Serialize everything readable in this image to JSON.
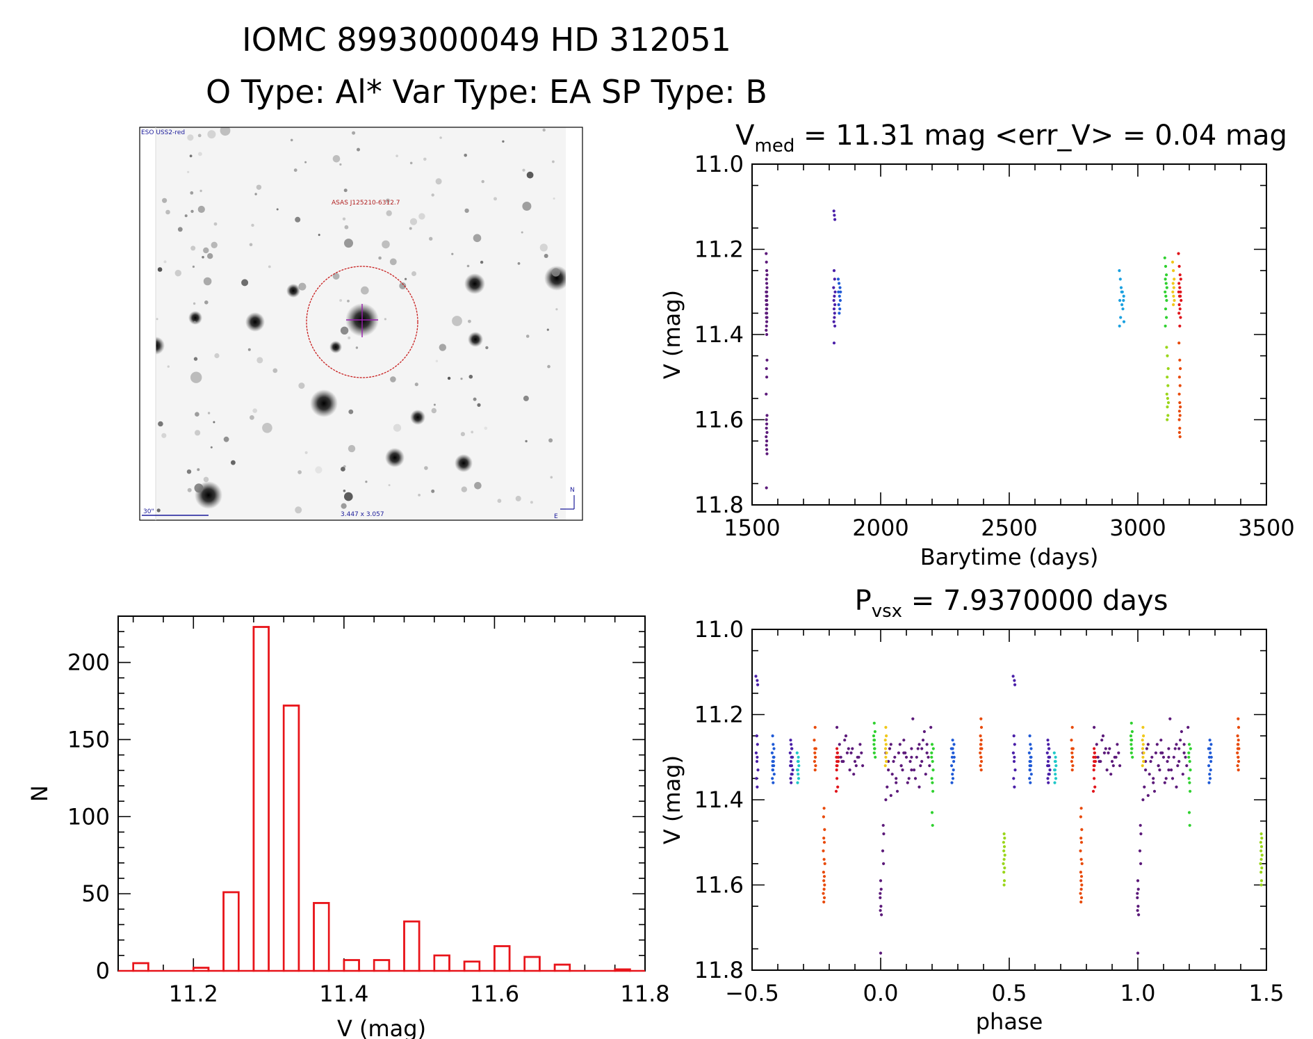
{
  "header": {
    "title_line1": "IOMC 8993000049    HD 312051",
    "title_line2": "O Type: Al*  Var Type: EA  SP Type: B"
  },
  "finder": {
    "survey_label": "ESO USS2-red",
    "object_label": "ASAS J125210-6312.7",
    "scale_label": "30\"",
    "fov_label": "3.447 x 3.057",
    "north_label": "N",
    "east_label": "E"
  },
  "colors": {
    "histogram": "#e8141a",
    "circle": "#c81e1e",
    "crosshair": "#9b1fb0",
    "axis": "#000000"
  },
  "chart_data": [
    {
      "id": "light_curve",
      "type": "scatter",
      "title_main": "V",
      "title_sub": "med",
      "title_rest": " = 11.31 mag <err_V> = 0.04 mag",
      "xlabel": "Barytime (days)",
      "ylabel": "V (mag)",
      "xlim": [
        1500,
        3500
      ],
      "ylim": [
        11.8,
        11.0
      ],
      "xticks": [
        "1500",
        "2000",
        "2500",
        "3000",
        "3500"
      ],
      "yticks": [
        "11.0",
        "11.2",
        "11.4",
        "11.6",
        "11.8"
      ],
      "series": [
        {
          "color": "#5c1a7a",
          "x": [
            1555,
            1556,
            1557,
            1558,
            1556,
            1557,
            1558,
            1555,
            1557,
            1556,
            1558,
            1555,
            1557,
            1556,
            1558,
            1557,
            1556,
            1555,
            1557,
            1556,
            1558,
            1557,
            1556,
            1555,
            1557,
            1558,
            1556,
            1557,
            1555,
            1558,
            1556,
            1557,
            1556,
            1558,
            1555,
            1557,
            1556,
            1557,
            1558,
            1556
          ],
          "y": [
            11.21,
            11.23,
            11.25,
            11.26,
            11.27,
            11.28,
            11.29,
            11.3,
            11.3,
            11.31,
            11.31,
            11.32,
            11.32,
            11.33,
            11.33,
            11.34,
            11.34,
            11.35,
            11.35,
            11.36,
            11.36,
            11.37,
            11.38,
            11.39,
            11.4,
            11.46,
            11.48,
            11.5,
            11.54,
            11.59,
            11.6,
            11.61,
            11.62,
            11.63,
            11.64,
            11.65,
            11.66,
            11.67,
            11.68,
            11.76
          ]
        },
        {
          "color": "#4a1fa8",
          "x": [
            1818,
            1820,
            1822,
            1819,
            1821,
            1817,
            1823,
            1820,
            1818,
            1822,
            1819,
            1821,
            1820,
            1818,
            1822,
            1819
          ],
          "y": [
            11.11,
            11.12,
            11.13,
            11.25,
            11.27,
            11.29,
            11.3,
            11.31,
            11.32,
            11.33,
            11.34,
            11.35,
            11.36,
            11.37,
            11.38,
            11.42
          ]
        },
        {
          "color": "#1f5ad6",
          "x": [
            1835,
            1838,
            1842,
            1836,
            1840,
            1843,
            1837,
            1841,
            1839,
            1844
          ],
          "y": [
            11.27,
            11.28,
            11.29,
            11.3,
            11.31,
            11.32,
            11.33,
            11.34,
            11.35,
            11.3
          ]
        },
        {
          "color": "#1aa0e0",
          "x": [
            2928,
            2932,
            2935,
            2940,
            2945,
            2930,
            2938,
            2942,
            2933,
            2946,
            2929,
            2937,
            2944
          ],
          "y": [
            11.25,
            11.27,
            11.29,
            11.3,
            11.31,
            11.32,
            11.33,
            11.34,
            11.36,
            11.37,
            11.38,
            11.3,
            11.32
          ]
        },
        {
          "color": "#2fd12f",
          "x": [
            3105,
            3108,
            3111,
            3107,
            3110,
            3113,
            3106,
            3109,
            3112,
            3108,
            3111,
            3107
          ],
          "y": [
            11.22,
            11.24,
            11.26,
            11.27,
            11.28,
            11.29,
            11.3,
            11.31,
            11.32,
            11.34,
            11.36,
            11.38
          ]
        },
        {
          "color": "#9ad61a",
          "x": [
            3112,
            3115,
            3118,
            3114,
            3117,
            3113,
            3116,
            3119,
            3115,
            3117,
            3114
          ],
          "y": [
            11.43,
            11.45,
            11.48,
            11.5,
            11.52,
            11.54,
            11.55,
            11.56,
            11.57,
            11.59,
            11.6
          ]
        },
        {
          "color": "#f0c81a",
          "x": [
            3135,
            3138,
            3141,
            3137,
            3140,
            3136,
            3139,
            3142,
            3138
          ],
          "y": [
            11.23,
            11.25,
            11.27,
            11.28,
            11.29,
            11.3,
            11.31,
            11.32,
            11.33
          ]
        },
        {
          "color": "#e84a0a",
          "x": [
            3160,
            3163,
            3165,
            3162,
            3164,
            3161,
            3163,
            3165,
            3162,
            3164,
            3161,
            3163,
            3162,
            3164
          ],
          "y": [
            11.42,
            11.46,
            11.48,
            11.5,
            11.52,
            11.54,
            11.56,
            11.57,
            11.58,
            11.59,
            11.6,
            11.62,
            11.63,
            11.64
          ]
        },
        {
          "color": "#e0141a",
          "x": [
            3158,
            3161,
            3164,
            3167,
            3160,
            3163,
            3166,
            3159,
            3162,
            3165,
            3168,
            3161,
            3164,
            3160,
            3166,
            3163
          ],
          "y": [
            11.21,
            11.24,
            11.26,
            11.27,
            11.28,
            11.29,
            11.3,
            11.3,
            11.31,
            11.31,
            11.32,
            11.33,
            11.34,
            11.35,
            11.36,
            11.38
          ]
        }
      ]
    },
    {
      "id": "histogram",
      "type": "bar",
      "xlabel": "V (mag)",
      "ylabel": "N",
      "xlim": [
        11.1,
        11.8
      ],
      "ylim": [
        0,
        230
      ],
      "xticks": [
        "11.2",
        "11.4",
        "11.6",
        "11.8"
      ],
      "yticks": [
        "0",
        "50",
        "100",
        "150",
        "200"
      ],
      "bin_edges": [
        11.1,
        11.12,
        11.14,
        11.16,
        11.18,
        11.2,
        11.22,
        11.24,
        11.26,
        11.28,
        11.3,
        11.32,
        11.34,
        11.36,
        11.38,
        11.4,
        11.42,
        11.44,
        11.46,
        11.48,
        11.5,
        11.52,
        11.54,
        11.56,
        11.58,
        11.6,
        11.62,
        11.64,
        11.66,
        11.68,
        11.7,
        11.72,
        11.74,
        11.76,
        11.78,
        11.8
      ],
      "values": [
        0,
        5,
        0,
        0,
        0,
        2,
        0,
        51,
        0,
        223,
        0,
        172,
        0,
        44,
        0,
        7,
        0,
        7,
        0,
        32,
        0,
        10,
        0,
        6,
        0,
        16,
        0,
        9,
        0,
        4,
        0,
        0,
        0,
        1,
        0
      ]
    },
    {
      "id": "phased",
      "type": "scatter",
      "title_main": "P",
      "title_sub": "vsx",
      "title_rest": " = 7.9370000 days",
      "xlabel": "phase",
      "ylabel": "V (mag)",
      "xlim": [
        -0.5,
        1.5
      ],
      "ylim": [
        11.8,
        11.0
      ],
      "xticks": [
        "−0.5",
        "0.0",
        "0.5",
        "1.0",
        "1.5"
      ],
      "yticks": [
        "11.0",
        "11.2",
        "11.4",
        "11.6",
        "11.8"
      ],
      "series": [
        {
          "color": "#4a1fa8",
          "x": [
            -0.485,
            -0.48,
            -0.478,
            -0.482,
            -0.479,
            -0.484,
            -0.481,
            -0.477,
            -0.483,
            -0.48,
            -0.48,
            -0.35,
            -0.348,
            -0.345,
            -0.352,
            -0.347,
            -0.349,
            -0.346,
            -0.342,
            -0.344,
            -0.35,
            -0.348,
            -0.343,
            -0.346,
            -0.351,
            -0.347
          ],
          "y": [
            11.11,
            11.12,
            11.13,
            11.25,
            11.27,
            11.29,
            11.31,
            11.33,
            11.35,
            11.37,
            11.3,
            11.26,
            11.27,
            11.28,
            11.29,
            11.3,
            11.31,
            11.32,
            11.33,
            11.34,
            11.35,
            11.36,
            11.3,
            11.28,
            11.32,
            11.34
          ]
        },
        {
          "color": "#1f5ad6",
          "x": [
            -0.42,
            -0.418,
            -0.415,
            -0.422,
            -0.417,
            -0.42,
            -0.416,
            -0.419,
            -0.414,
            -0.421,
            -0.418,
            -0.415,
            -0.42,
            -0.417,
            -0.42,
            0.28,
            0.285,
            0.275,
            0.282,
            0.278,
            0.284,
            0.276,
            0.283,
            0.279,
            0.281,
            0.277,
            0.286,
            0.28
          ],
          "y": [
            11.25,
            11.27,
            11.28,
            11.29,
            11.3,
            11.31,
            11.32,
            11.33,
            11.34,
            11.35,
            11.36,
            11.3,
            11.32,
            11.31,
            11.33,
            11.26,
            11.27,
            11.28,
            11.29,
            11.3,
            11.31,
            11.32,
            11.33,
            11.34,
            11.35,
            11.36,
            11.3,
            11.28
          ]
        },
        {
          "color": "#1fc8c8",
          "x": [
            -0.325,
            -0.32,
            -0.322,
            -0.318,
            -0.324,
            -0.321,
            -0.319,
            -0.323,
            -0.32,
            -0.322
          ],
          "y": [
            11.29,
            11.3,
            11.31,
            11.32,
            11.33,
            11.34,
            11.35,
            11.36,
            11.31,
            11.33
          ]
        },
        {
          "color": "#e84a0a",
          "x": [
            -0.255,
            -0.258,
            -0.252,
            -0.256,
            -0.254,
            -0.257,
            -0.253,
            -0.255,
            -0.256,
            -0.254,
            -0.22,
            -0.222,
            -0.218,
            -0.221,
            -0.219,
            -0.223,
            -0.22,
            -0.217,
            -0.222,
            -0.219,
            -0.221,
            -0.218,
            -0.22,
            -0.223,
            -0.219,
            -0.221,
            0.39,
            0.392,
            0.388,
            0.391,
            0.389,
            0.393,
            0.387,
            0.39,
            0.392,
            0.388,
            0.391,
            0.389,
            0.39,
            0.39
          ],
          "y": [
            11.23,
            11.26,
            11.28,
            11.29,
            11.3,
            11.31,
            11.32,
            11.33,
            11.28,
            11.3,
            11.42,
            11.44,
            11.47,
            11.49,
            11.5,
            11.52,
            11.54,
            11.55,
            11.57,
            11.58,
            11.59,
            11.6,
            11.61,
            11.62,
            11.63,
            11.64,
            11.21,
            11.23,
            11.25,
            11.26,
            11.27,
            11.28,
            11.29,
            11.3,
            11.31,
            11.32,
            11.33,
            11.28,
            11.3,
            11.27
          ]
        },
        {
          "color": "#e0141a",
          "x": [
            -0.17,
            -0.168,
            -0.172,
            -0.165,
            -0.169,
            -0.171,
            -0.166,
            -0.17,
            -0.167,
            -0.173,
            -0.168,
            -0.17,
            -0.164,
            -0.171
          ],
          "y": [
            11.28,
            11.29,
            11.3,
            11.31,
            11.32,
            11.33,
            11.3,
            11.35,
            11.37,
            11.38,
            11.29,
            11.31,
            11.3,
            11.32
          ]
        },
        {
          "color": "#5c1a7a",
          "x": [
            -0.17,
            -0.16,
            -0.15,
            -0.14,
            -0.13,
            -0.12,
            -0.11,
            -0.1,
            -0.09,
            -0.08,
            -0.07,
            -0.155,
            -0.135,
            -0.115,
            -0.095,
            -0.075,
            -0.145,
            -0.125,
            -0.105,
            -0.085,
            0.0,
            0.002,
            -0.002,
            0.001,
            -0.001,
            0.003,
            0.0,
            -0.002,
            0.02,
            0.03,
            0.04,
            0.05,
            0.06,
            0.07,
            0.08,
            0.09,
            0.1,
            0.11,
            0.12,
            0.13,
            0.14,
            0.15,
            0.16,
            0.17,
            0.18,
            0.19,
            0.025,
            0.035,
            0.045,
            0.055,
            0.065,
            0.075,
            0.085,
            0.095,
            0.105,
            0.115,
            0.125,
            0.135,
            0.145,
            0.155,
            0.165,
            0.175,
            0.185,
            0.195,
            0.03,
            0.06,
            0.09,
            0.12,
            0.15,
            0.18,
            0.04,
            0.08,
            0.12,
            0.16,
            0.02,
            0.01,
            0.012,
            0.008,
            0.011
          ],
          "y": [
            11.23,
            11.27,
            11.31,
            11.26,
            11.29,
            11.33,
            11.28,
            11.31,
            11.3,
            11.27,
            11.32,
            11.3,
            11.25,
            11.29,
            11.32,
            11.29,
            11.31,
            11.28,
            11.34,
            11.3,
            11.59,
            11.61,
            11.63,
            11.65,
            11.66,
            11.67,
            11.76,
            11.62,
            11.29,
            11.33,
            11.27,
            11.31,
            11.36,
            11.29,
            11.32,
            11.26,
            11.3,
            11.35,
            11.28,
            11.33,
            11.3,
            11.27,
            11.31,
            11.24,
            11.29,
            11.32,
            11.37,
            11.28,
            11.34,
            11.3,
            11.38,
            11.27,
            11.33,
            11.29,
            11.36,
            11.31,
            11.21,
            11.35,
            11.28,
            11.32,
            11.26,
            11.34,
            11.3,
            11.23,
            11.31,
            11.35,
            11.29,
            11.33,
            11.37,
            11.27,
            11.39,
            11.32,
            11.3,
            11.28,
            11.4,
            11.46,
            11.48,
            11.52,
            11.55
          ]
        },
        {
          "color": "#2fd12f",
          "x": [
            -0.025,
            -0.022,
            -0.027,
            -0.024,
            -0.026,
            -0.023,
            -0.025,
            -0.021,
            -0.026,
            -0.024,
            0.2,
            0.205,
            0.198,
            0.202,
            0.204,
            0.199,
            0.201,
            0.203,
            0.2,
            0.202,
            0.198
          ],
          "y": [
            11.22,
            11.24,
            11.25,
            11.26,
            11.27,
            11.28,
            11.29,
            11.3,
            11.26,
            11.28,
            11.27,
            11.28,
            11.29,
            11.31,
            11.33,
            11.35,
            11.36,
            11.38,
            11.43,
            11.46,
            11.3
          ]
        },
        {
          "color": "#f0c81a",
          "x": [
            0.02,
            0.022,
            0.018,
            0.021,
            0.019,
            0.023,
            0.02,
            0.022,
            0.018
          ],
          "y": [
            11.23,
            11.25,
            11.26,
            11.27,
            11.28,
            11.29,
            11.3,
            11.31,
            11.32
          ]
        },
        {
          "color": "#9ad61a",
          "x": [
            0.48,
            0.482,
            0.478,
            0.481,
            0.479,
            0.483,
            0.48,
            0.477,
            0.482,
            0.479,
            0.481,
            0.48
          ],
          "y": [
            11.48,
            11.49,
            11.5,
            11.51,
            11.52,
            11.53,
            11.54,
            11.55,
            11.56,
            11.57,
            11.59,
            11.6
          ]
        }
      ]
    }
  ]
}
